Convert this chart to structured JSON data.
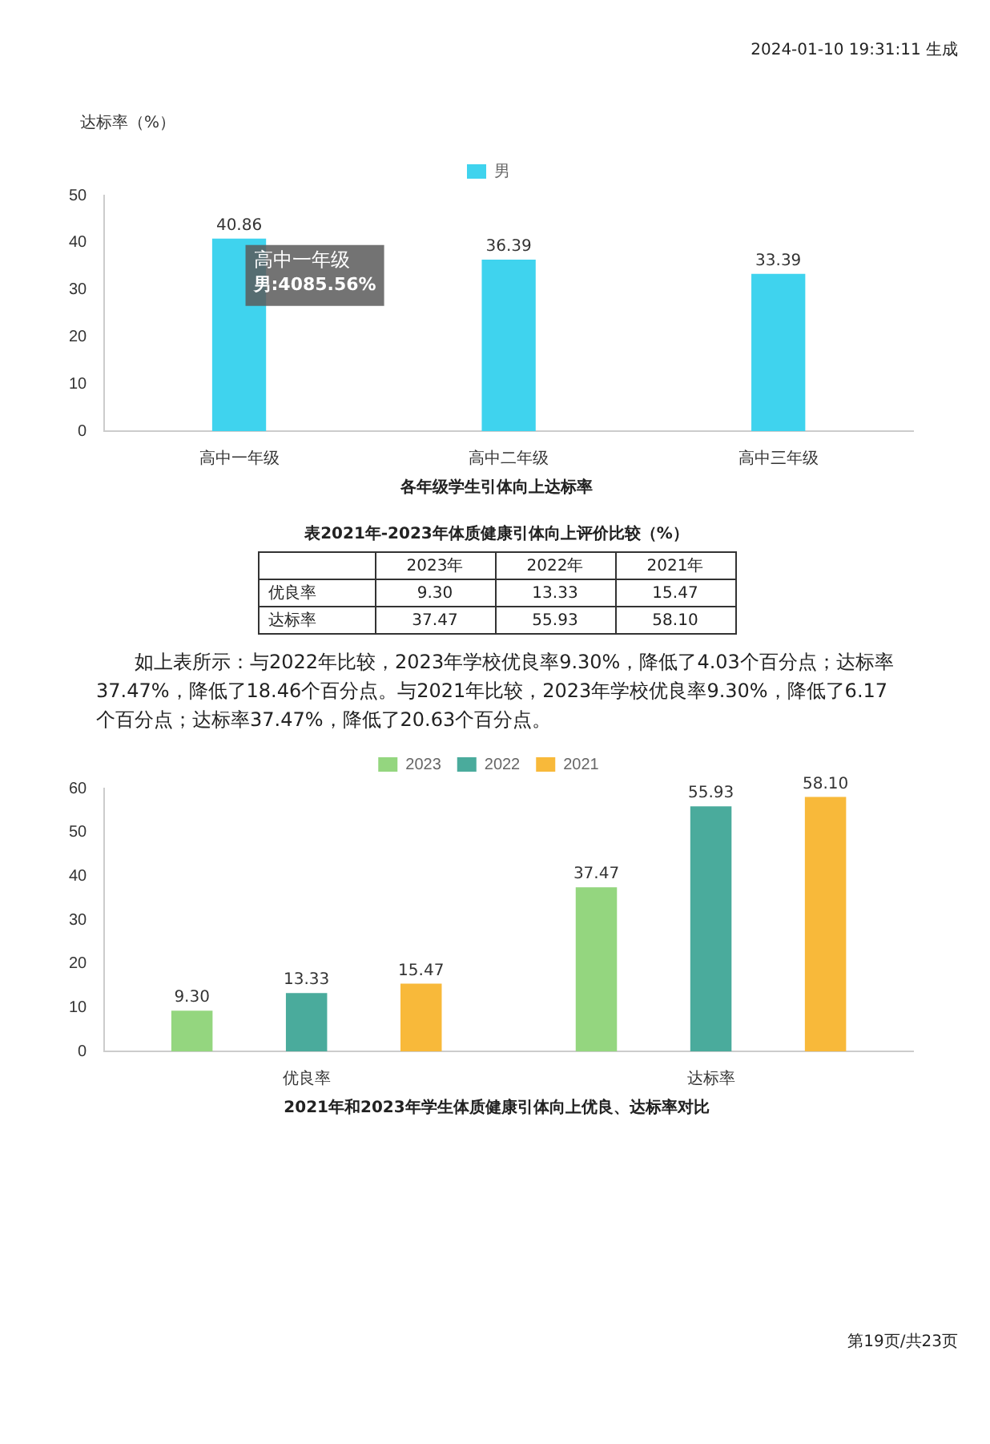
{
  "chart_data": [
    {
      "type": "bar",
      "title": "各年级学生引体向上达标率",
      "ylabel": "达标率（%）",
      "categories": [
        "高中一年级",
        "高中二年级",
        "高中三年级"
      ],
      "series": [
        {
          "name": "男",
          "color": "#3fd3ee",
          "values": [
            40.86,
            36.39,
            33.39
          ]
        }
      ],
      "ylim": [
        0,
        50
      ],
      "yticks": [
        0,
        10,
        20,
        30,
        40,
        50
      ],
      "grid": false,
      "legend": "top",
      "data_labels": true,
      "annotations": [
        "2024-01-10 19:31:11 生成",
        {
          "text": "高中一年级",
          "x": "高中一年级",
          "y": 40.86
        },
        {
          "text": "男:4085.56%",
          "x": "高中一年级",
          "y": 40.86
        }
      ]
    },
    {
      "type": "other",
      "title": "表2021年-2023年体质健康引体向上评价比较（%）",
      "categories": [
        "2023年",
        "2022年",
        "2021年"
      ],
      "y_categories": [
        "优良率",
        "达标率"
      ],
      "cell_labels": [
        [
          "9.30",
          "13.33",
          "15.47"
        ],
        [
          "37.47",
          "55.93",
          "58.10"
        ]
      ],
      "annotations": [
        "如上表所示：与2022年比较，2023年学校优良率9.30%，降低了4.03个百分点；达标率37.47%，降低了18.46个百分点。与2021年比较，2023年学校优良率9.30%，降低了6.17个百分点；达标率37.47%，降低了20.63个百分点。"
      ]
    },
    {
      "type": "bar",
      "title": "2021年和2023年学生体质健康引体向上优良、达标率对比",
      "categories": [
        "优良率",
        "达标率"
      ],
      "series": [
        {
          "name": "2023",
          "color": "#94d67f",
          "values": [
            9.3,
            37.47
          ],
          "value_labels": [
            "9.30",
            "37.47"
          ]
        },
        {
          "name": "2022",
          "color": "#4aab9c",
          "values": [
            13.33,
            55.93
          ],
          "value_labels": [
            "13.33",
            "55.93"
          ]
        },
        {
          "name": "2021",
          "color": "#f8b93a",
          "values": [
            15.47,
            58.1
          ],
          "value_labels": [
            "15.47",
            "58.10"
          ]
        }
      ],
      "ylim": [
        0,
        60
      ],
      "yticks": [
        0,
        10,
        20,
        30,
        40,
        50,
        60
      ],
      "grid": false,
      "legend": "top",
      "annotations": [
        "第19页/共23页"
      ]
    }
  ]
}
